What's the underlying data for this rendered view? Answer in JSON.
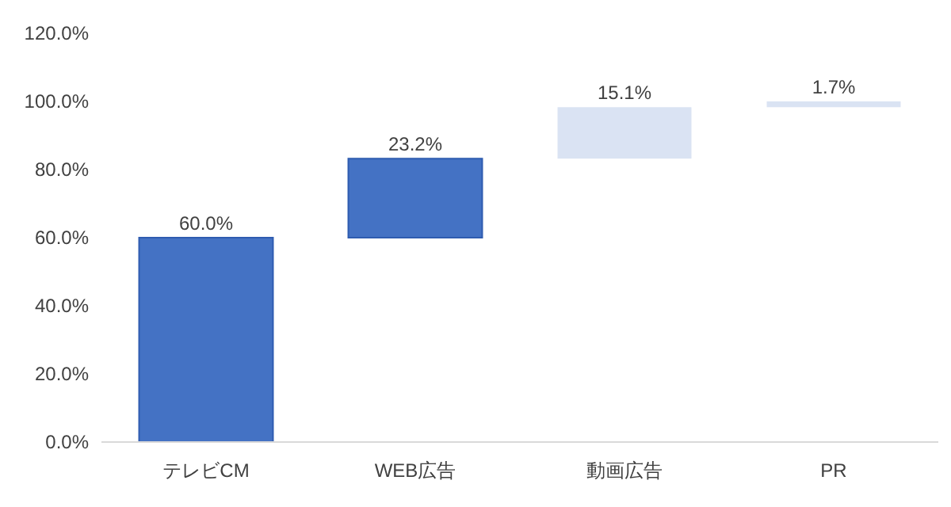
{
  "chart_data": {
    "type": "bar",
    "categories": [
      "テレビCM",
      "WEB広告",
      "動画広告",
      "PR"
    ],
    "values": [
      60.0,
      23.2,
      15.1,
      1.7
    ],
    "base": [
      0,
      60.0,
      83.2,
      98.3
    ],
    "colors": [
      "#4472c4",
      "#4472c4",
      "#dae3f3",
      "#dae3f3"
    ],
    "value_labels": [
      "60.0%",
      "23.2%",
      "15.1%",
      "1.7%"
    ],
    "ylim": [
      0,
      120
    ],
    "yticks": [
      {
        "value": 0,
        "label": "0.0%"
      },
      {
        "value": 20,
        "label": "20.0%"
      },
      {
        "value": 40,
        "label": "40.0%"
      },
      {
        "value": 60,
        "label": "60.0%"
      },
      {
        "value": 80,
        "label": "80.0%"
      },
      {
        "value": 100,
        "label": "100.0%"
      },
      {
        "value": 120,
        "label": "120.0%"
      }
    ],
    "grid": false
  }
}
